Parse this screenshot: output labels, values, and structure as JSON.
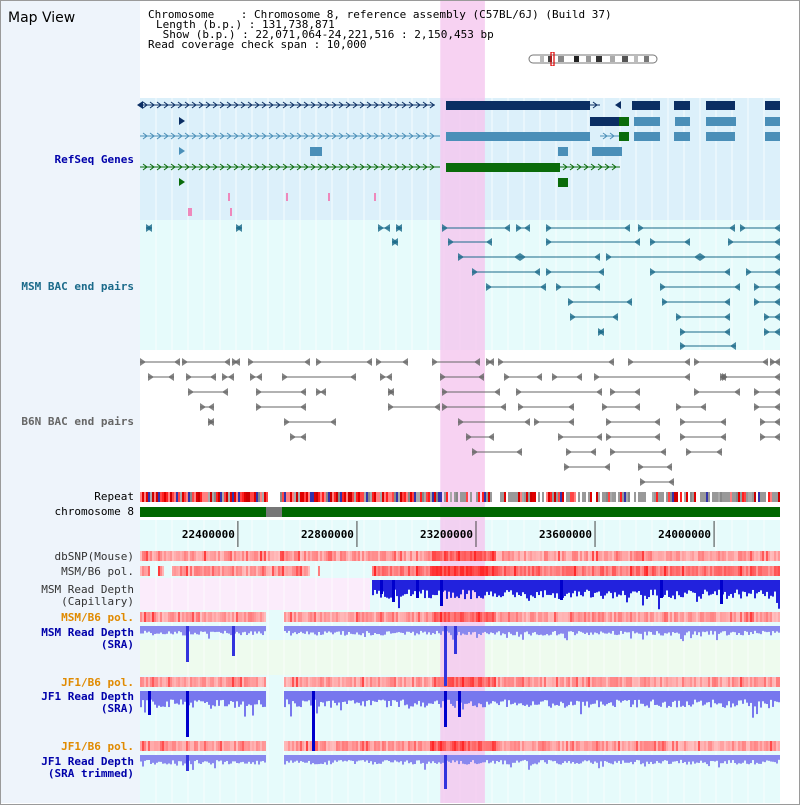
{
  "page": {
    "title": "Map View"
  },
  "info": {
    "chromosome": "Chromosome    : Chromosome 8, reference assembly (C57BL/6J) (Build 37)",
    "length": "Length (b.p.) : 131,738,871",
    "show": " Show (b.p.) : 22,071,064-24,221,516 : 2,150,453 bp",
    "coverage": "Read coverage check span : 10,000"
  },
  "labels": {
    "refseq": "RefSeq Genes",
    "msm_bac": "MSM BAC end pairs",
    "b6n_bac": "B6N BAC end pairs",
    "repeat": "Repeat",
    "chromosome": "chromosome 8",
    "dbsnp": "dbSNP(Mouse)",
    "msm_b6_pol_1": "MSM/B6 pol.",
    "msm_depth_cap": "MSM Read Depth\n(Capillary)",
    "msm_b6_pol_2": "MSM/B6 pol.",
    "msm_depth_sra": "MSM Read Depth\n(SRA)",
    "jf1_b6_pol_1": "JF1/B6 pol.",
    "jf1_depth_sra": "JF1 Read Depth\n(SRA)",
    "jf1_b6_pol_2": "JF1/B6 pol.",
    "jf1_depth_trim": "JF1 Read Depth\n(SRA trimmed)"
  },
  "axis": {
    "ticks": [
      "22400000",
      "22800000",
      "23200000",
      "23600000",
      "24000000"
    ],
    "tick_values": [
      22400000,
      22800000,
      23200000,
      23600000,
      24000000
    ],
    "range": [
      22071064,
      24221516
    ]
  },
  "highlight_range": [
    23080000,
    23230000
  ],
  "colors": {
    "refseq_dark": "#0b2e63",
    "refseq_mid": "#4a8fb8",
    "refseq_green": "#0a6b0a",
    "msm_bac": "#1b6a8a",
    "b6n_bac": "#666666",
    "highlight": "#f5c7ef",
    "track_label_blue": "#0000aa",
    "track_label_orange": "#e08a00",
    "msm_bac_label": "#1b6a8a",
    "b6n_bac_label": "#666666"
  }
}
